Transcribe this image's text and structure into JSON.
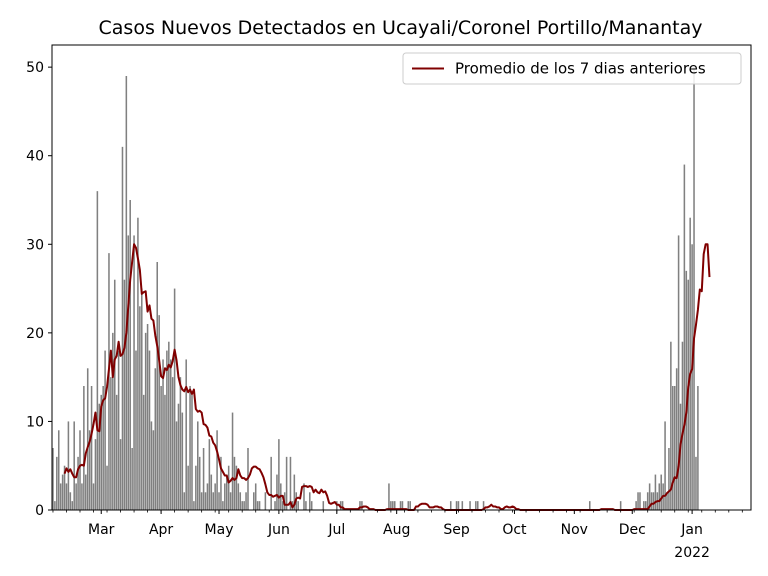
{
  "chart_data": {
    "type": "bar",
    "title": "Casos Nuevos Detectados en Ucayali/Coronel Portillo/Manantay",
    "xlabel": "",
    "ylabel": "",
    "x_range": [
      "2021-02-04",
      "2022-01-31"
    ],
    "ylim": [
      0,
      52.5
    ],
    "y_ticks": [
      0,
      10,
      20,
      30,
      40,
      50
    ],
    "x_ticks": [
      {
        "date": "2021-03-01",
        "label": "Mar"
      },
      {
        "date": "2021-04-01",
        "label": "Apr"
      },
      {
        "date": "2021-05-01",
        "label": "May"
      },
      {
        "date": "2021-06-01",
        "label": "Jun"
      },
      {
        "date": "2021-07-01",
        "label": "Jul"
      },
      {
        "date": "2021-08-01",
        "label": "Aug"
      },
      {
        "date": "2021-09-01",
        "label": "Sep"
      },
      {
        "date": "2021-10-01",
        "label": "Oct"
      },
      {
        "date": "2021-11-01",
        "label": "Nov"
      },
      {
        "date": "2021-12-01",
        "label": "Dec"
      },
      {
        "date": "2022-01-01",
        "label": "Jan",
        "sublabel": "2022"
      }
    ],
    "grid": false,
    "legend_position": "top-right",
    "series": [
      {
        "name": "",
        "kind": "bar",
        "color": "#808080",
        "start_date": "2021-02-04",
        "values": [
          7,
          1,
          6,
          9,
          3,
          4,
          5,
          3,
          10,
          2,
          1,
          10,
          3,
          6,
          9,
          3,
          14,
          4,
          16,
          9,
          14,
          3,
          8,
          36,
          12,
          13,
          14,
          18,
          5,
          29,
          15,
          20,
          26,
          13,
          18,
          8,
          41,
          26,
          49,
          31,
          35,
          7,
          31,
          18,
          33,
          23,
          25,
          13,
          20,
          21,
          18,
          10,
          9,
          16,
          28,
          22,
          14,
          17,
          13,
          18,
          19,
          17,
          15,
          25,
          10,
          12,
          15,
          11,
          2,
          17,
          5,
          14,
          13,
          1,
          5,
          10,
          6,
          2,
          7,
          2,
          3,
          8,
          4,
          2,
          3,
          9,
          2,
          6,
          1,
          3,
          4,
          5,
          2,
          11,
          6,
          5,
          3,
          2,
          1,
          1,
          2,
          7,
          0,
          0,
          2,
          3,
          1,
          1,
          0,
          0,
          2,
          0,
          0,
          6,
          0,
          1,
          4,
          8,
          3,
          1,
          2,
          6,
          0,
          6,
          1,
          4,
          2,
          1,
          0,
          0,
          3,
          1,
          0,
          2,
          1,
          0,
          0,
          0,
          0,
          0,
          1,
          0,
          0,
          0,
          0,
          0,
          0,
          1,
          0,
          1,
          1,
          0,
          0,
          0,
          0,
          0,
          0,
          0,
          0,
          1,
          1,
          0,
          0,
          0,
          0,
          0,
          0,
          0,
          0,
          0,
          0,
          0,
          0,
          0,
          3,
          1,
          1,
          1,
          0,
          0,
          1,
          1,
          0,
          0,
          1,
          1,
          0,
          0,
          0,
          0,
          0,
          0,
          0,
          0,
          0,
          0,
          0,
          0,
          0,
          0,
          0,
          0,
          0,
          0,
          0,
          0,
          1,
          0,
          0,
          1,
          1,
          0,
          1,
          0,
          0,
          0,
          1,
          0,
          0,
          1,
          1,
          0,
          0,
          1,
          0,
          0,
          0,
          0,
          0,
          0,
          0,
          0,
          0,
          0,
          0,
          0,
          0,
          0,
          0,
          0,
          0,
          0,
          0,
          0,
          0,
          0,
          0,
          0,
          0,
          0,
          0,
          0,
          0,
          0,
          0,
          0,
          0,
          0,
          0,
          0,
          0,
          0,
          0,
          0,
          0,
          0,
          0,
          0,
          0,
          0,
          0,
          0,
          0,
          0,
          0,
          0,
          0,
          0,
          1,
          0,
          0,
          0,
          0,
          0,
          0,
          0,
          0,
          0,
          0,
          0,
          0,
          0,
          0,
          0,
          1,
          0,
          0,
          0,
          0,
          0,
          0,
          0,
          1,
          2,
          2,
          0,
          1,
          1,
          2,
          3,
          2,
          2,
          4,
          2,
          3,
          4,
          3,
          10,
          2,
          7,
          19,
          14,
          14,
          16,
          31,
          12,
          19,
          39,
          27,
          26,
          33,
          30,
          50,
          6,
          14
        ]
      },
      {
        "name": "Promedio de los 7 dias anteriores",
        "kind": "line",
        "color": "#800000",
        "start_date": "2021-02-10",
        "values": [
          4.1,
          4.7,
          4.3,
          4.6,
          4.1,
          3.7,
          3.7,
          4.6,
          5.0,
          5.1,
          5.0,
          6.4,
          7.1,
          7.7,
          8.6,
          9.7,
          11.0,
          9.0,
          8.9,
          11.7,
          12.4,
          12.6,
          13.9,
          15.9,
          18.0,
          15.0,
          17.0,
          17.4,
          19.0,
          17.4,
          17.6,
          18.3,
          20.0,
          23.0,
          26.0,
          28.0,
          30.0,
          29.6,
          28.4,
          27.1,
          24.4,
          24.6,
          24.7,
          22.4,
          23.1,
          21.6,
          21.4,
          19.7,
          18.5,
          16.9,
          15.1,
          14.9,
          16.0,
          15.8,
          16.4,
          16.1,
          16.8,
          18.1,
          16.9,
          15.0,
          14.1,
          13.6,
          13.4,
          13.9,
          13.3,
          13.6,
          13.1,
          13.6,
          11.4,
          11.1,
          11.2,
          11.0,
          9.7,
          9.6,
          9.3,
          8.4,
          8.3,
          7.6,
          7.3,
          6.6,
          5.7,
          4.7,
          4.3,
          3.9,
          3.9,
          3.1,
          3.3,
          3.6,
          3.4,
          3.6,
          4.6,
          3.9,
          3.6,
          3.6,
          3.4,
          3.6,
          4.0,
          4.7,
          4.9,
          4.9,
          4.7,
          4.6,
          4.2,
          3.7,
          2.9,
          2.0,
          1.7,
          1.7,
          1.5,
          1.6,
          1.7,
          1.4,
          1.6,
          1.6,
          0.6,
          0.6,
          0.6,
          0.9,
          0.3,
          0.6,
          1.3,
          1.4,
          1.3,
          2.6,
          2.7,
          2.7,
          2.6,
          2.7,
          2.6,
          2.0,
          2.3,
          2.0,
          1.9,
          2.3,
          2.0,
          2.1,
          1.6,
          0.8,
          0.7,
          0.8,
          0.9,
          0.6,
          0.6,
          0.3,
          0.3,
          0.1,
          0.1,
          0.1,
          0.1,
          0.1,
          0.1,
          0.1,
          0.1,
          0.3,
          0.3,
          0.4,
          0.4,
          0.3,
          0.1,
          0.1,
          0.1,
          0.0,
          0.0,
          0.0,
          0.0,
          0.0,
          0.0,
          0.1,
          0.1,
          0.1,
          0.1,
          0.1,
          0.1,
          0.1,
          0.1,
          0.1,
          0.1,
          0.1,
          0.0,
          0.0,
          0.0,
          0.0,
          0.4,
          0.4,
          0.6,
          0.7,
          0.7,
          0.7,
          0.6,
          0.3,
          0.3,
          0.3,
          0.4,
          0.4,
          0.3,
          0.3,
          0.1,
          0.0,
          0.0,
          0.0,
          0.0,
          0.0,
          0.0,
          0.0,
          0.0,
          0.0,
          0.0,
          0.0,
          0.0,
          0.0,
          0.0,
          0.0,
          0.0,
          0.0,
          0.0,
          0.0,
          0.0,
          0.1,
          0.3,
          0.3,
          0.4,
          0.6,
          0.4,
          0.4,
          0.3,
          0.3,
          0.1,
          0.1,
          0.3,
          0.4,
          0.3,
          0.3,
          0.4,
          0.3,
          0.1,
          0.1,
          0.0,
          0.0,
          0.0,
          0.0,
          0.0,
          0.0,
          0.0,
          0.0,
          0.0,
          0.0,
          0.0,
          0.0,
          0.0,
          0.0,
          0.0,
          0.0,
          0.0,
          0.0,
          0.0,
          0.0,
          0.0,
          0.0,
          0.0,
          0.0,
          0.0,
          0.0,
          0.0,
          0.0,
          0.0,
          0.0,
          0.0,
          0.0,
          0.0,
          0.0,
          0.0,
          0.0,
          0.0,
          0.0,
          0.0,
          0.0,
          0.0,
          0.0,
          0.1,
          0.1,
          0.1,
          0.1,
          0.1,
          0.1,
          0.1,
          0.0,
          0.0,
          0.0,
          0.0,
          0.0,
          0.0,
          0.0,
          0.0,
          0.0,
          0.0,
          0.1,
          0.1,
          0.1,
          0.1,
          0.1,
          0.1,
          0.1,
          0.1,
          0.4,
          0.7,
          0.7,
          0.9,
          1.0,
          1.0,
          1.3,
          1.6,
          1.6,
          1.9,
          2.1,
          2.3,
          3.1,
          3.7,
          3.6,
          4.9,
          7.4,
          8.6,
          9.6,
          11.0,
          13.9,
          15.4,
          15.9,
          19.4,
          20.9,
          22.6,
          24.9,
          24.7,
          28.9,
          30.0,
          30.0,
          26.3
        ]
      }
    ]
  }
}
